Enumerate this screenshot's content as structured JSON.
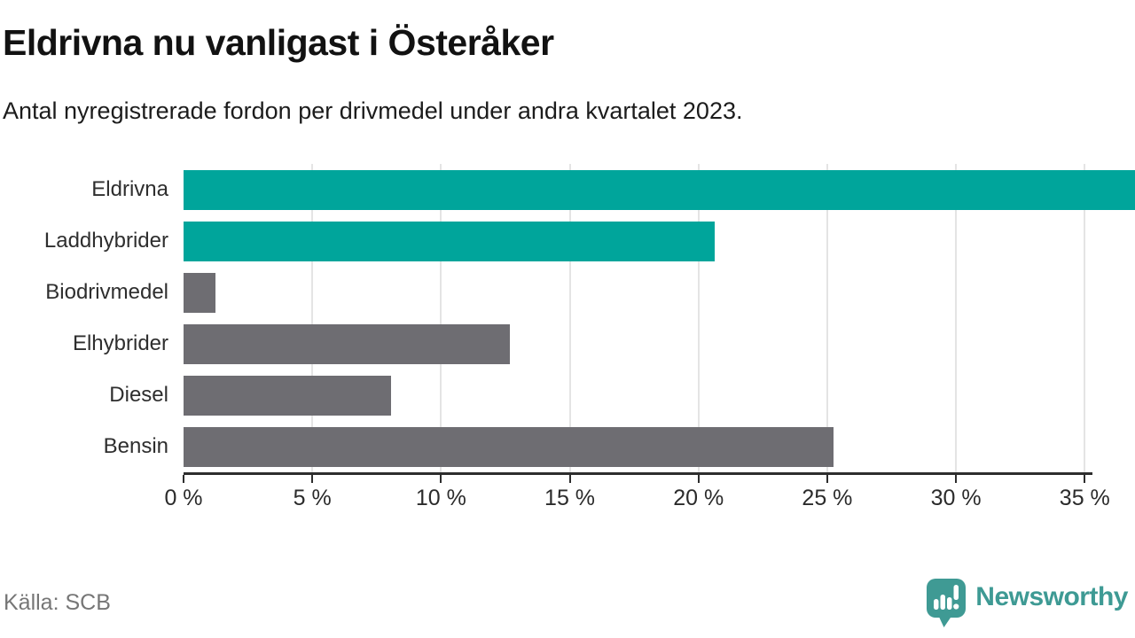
{
  "header": {
    "title": "Eldrivna nu vanligast i Österåker",
    "subtitle": "Antal nyregistrerade fordon per drivmedel under andra kvartalet 2023."
  },
  "chart_data": {
    "type": "bar",
    "orientation": "horizontal",
    "title": "Eldrivna nu vanligast i Österåker",
    "categories": [
      "Eldrivna",
      "Laddhybrider",
      "Biodrivmedel",
      "Elhybrider",
      "Diesel",
      "Bensin"
    ],
    "values": [
      35.3,
      19.7,
      1.2,
      12.1,
      7.7,
      24.1
    ],
    "unit": "%",
    "bar_colors": [
      "#00a59b",
      "#00a59b",
      "#6e6d72",
      "#6e6d72",
      "#6e6d72",
      "#6e6d72"
    ],
    "highlight_color": "#00a59b",
    "default_color": "#6e6d72",
    "xlabel": "",
    "ylabel": "",
    "xlim": [
      0,
      35.3
    ],
    "xticks": [
      0,
      5,
      10,
      15,
      20,
      25,
      30,
      35
    ],
    "xtick_labels": [
      "0 %",
      "5 %",
      "10 %",
      "15 %",
      "20 %",
      "25 %",
      "30 %",
      "35 %"
    ],
    "grid": "vertical",
    "legend": "none"
  },
  "footer": {
    "source": "Källa: SCB",
    "brand": "Newsworthy",
    "brand_color": "#3e9a94"
  }
}
